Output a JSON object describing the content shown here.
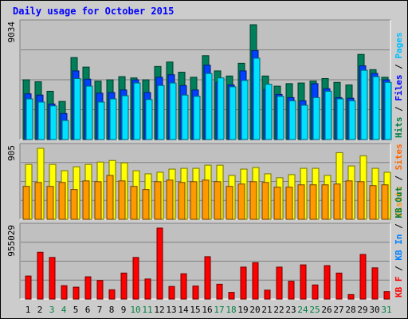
{
  "chart_data": [
    {
      "type": "bar",
      "title": "Daily usage for October 2015",
      "categories": [
        "1",
        "2",
        "3",
        "4",
        "5",
        "6",
        "7",
        "8",
        "9",
        "10",
        "11",
        "12",
        "13",
        "14",
        "15",
        "16",
        "17",
        "18",
        "19",
        "20",
        "21",
        "22",
        "23",
        "24",
        "25",
        "26",
        "27",
        "28",
        "29",
        "30",
        "31"
      ],
      "weekend_days": [
        "3",
        "4",
        "10",
        "11",
        "17",
        "18",
        "24",
        "25",
        "31"
      ],
      "ymax": 9034,
      "ymax_label": "9034",
      "right_labels": [
        {
          "text": "Hits",
          "color": "#008040"
        },
        {
          "text": " / ",
          "color": "#000000"
        },
        {
          "text": "Files",
          "color": "#0000ff"
        },
        {
          "text": " / ",
          "color": "#000000"
        },
        {
          "text": "Pages",
          "color": "#00c0ff"
        }
      ],
      "series": [
        {
          "name": "Hits",
          "color": "#00805a",
          "values": [
            4700,
            4550,
            3800,
            3000,
            6450,
            5700,
            4600,
            4700,
            4950,
            4850,
            4700,
            5750,
            6100,
            5300,
            4900,
            6600,
            5400,
            5000,
            6000,
            9034,
            5000,
            4200,
            4400,
            4450,
            4600,
            4800,
            4500,
            4300,
            6700,
            5500,
            4900
          ]
        },
        {
          "name": "Files",
          "color": "#0040ff",
          "values": [
            3600,
            3500,
            2800,
            2050,
            5400,
            4750,
            3650,
            3700,
            3900,
            4700,
            3700,
            4900,
            5100,
            4250,
            3900,
            5850,
            4500,
            4300,
            5400,
            7000,
            3950,
            3550,
            3300,
            3050,
            4400,
            4000,
            3300,
            3250,
            5800,
            5200,
            4700
          ]
        },
        {
          "name": "Pages",
          "color": "#00e0ff",
          "values": [
            3200,
            2950,
            2650,
            1500,
            4800,
            4200,
            2950,
            3200,
            3450,
            4450,
            3150,
            4250,
            4450,
            3500,
            3400,
            5200,
            4850,
            4150,
            4650,
            6400,
            4350,
            3400,
            3050,
            2700,
            3300,
            3800,
            3200,
            3050,
            5450,
            4950,
            4500
          ]
        }
      ]
    },
    {
      "type": "bar",
      "categories": [
        "1",
        "2",
        "3",
        "4",
        "5",
        "6",
        "7",
        "8",
        "9",
        "10",
        "11",
        "12",
        "13",
        "14",
        "15",
        "16",
        "17",
        "18",
        "19",
        "20",
        "21",
        "22",
        "23",
        "24",
        "25",
        "26",
        "27",
        "28",
        "29",
        "30",
        "31"
      ],
      "ymax": 905,
      "ymax_label": "905",
      "right_labels": [
        {
          "text": "Visits",
          "color": "#ff9900"
        },
        {
          "text": " / ",
          "color": "#000000"
        },
        {
          "text": "Sites",
          "color": "#ff6600"
        }
      ],
      "series": [
        {
          "name": "Visits",
          "color": "#ffff00",
          "values": [
            700,
            905,
            700,
            620,
            670,
            700,
            730,
            750,
            720,
            620,
            580,
            600,
            640,
            650,
            650,
            690,
            690,
            560,
            640,
            660,
            580,
            530,
            570,
            650,
            650,
            560,
            850,
            680,
            810,
            650,
            600
          ]
        },
        {
          "name": "Sites",
          "color": "#ff9900",
          "values": [
            420,
            470,
            420,
            470,
            380,
            490,
            480,
            560,
            490,
            420,
            380,
            480,
            500,
            470,
            480,
            500,
            480,
            420,
            450,
            480,
            470,
            410,
            410,
            440,
            440,
            440,
            450,
            490,
            480,
            430,
            440
          ]
        }
      ]
    },
    {
      "type": "bar",
      "categories": [
        "1",
        "2",
        "3",
        "4",
        "5",
        "6",
        "7",
        "8",
        "9",
        "10",
        "11",
        "12",
        "13",
        "14",
        "15",
        "16",
        "17",
        "18",
        "19",
        "20",
        "21",
        "22",
        "23",
        "24",
        "25",
        "26",
        "27",
        "28",
        "29",
        "30",
        "31"
      ],
      "ymax": 955029,
      "ymax_label": "955029",
      "right_labels": [
        {
          "text": "KB F",
          "color": "#ff0000"
        },
        {
          "text": " / ",
          "color": "#000000"
        },
        {
          "text": "KB In",
          "color": "#0080ff"
        },
        {
          "text": " / ",
          "color": "#000000"
        },
        {
          "text": "KB Out",
          "color": "#008040"
        }
      ],
      "series": [
        {
          "name": "KB F",
          "color": "#ff0000",
          "values": [
            310000,
            630000,
            560000,
            180000,
            160000,
            300000,
            250000,
            125000,
            350000,
            560000,
            270000,
            955000,
            170000,
            340000,
            175000,
            570000,
            200000,
            90000,
            430000,
            490000,
            120000,
            430000,
            240000,
            460000,
            190000,
            450000,
            350000,
            60000,
            600000,
            420000,
            100000
          ]
        }
      ]
    }
  ]
}
